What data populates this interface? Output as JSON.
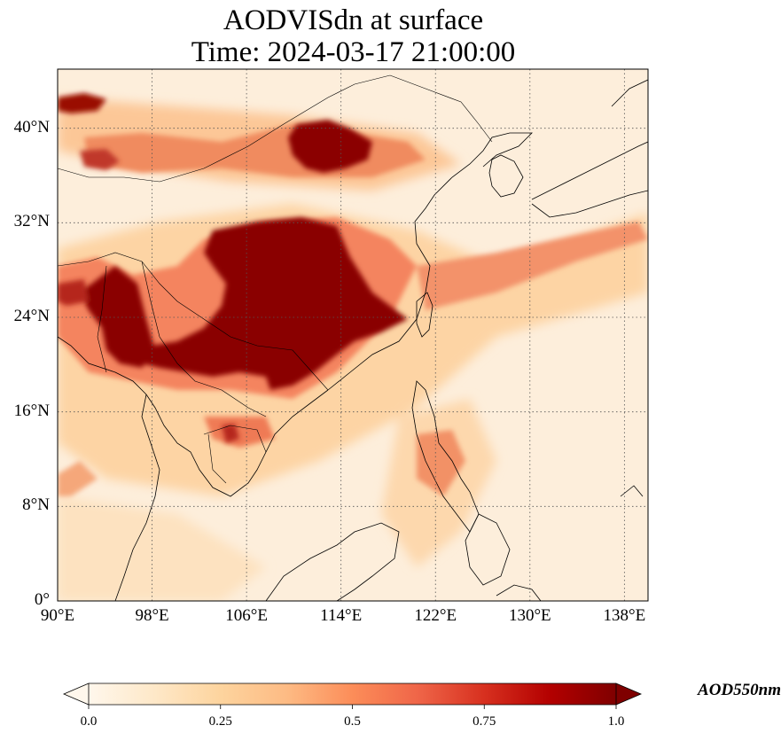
{
  "title": {
    "line1": "AODVISdn at surface",
    "line2": "Time: 2024-03-17 21:00:00"
  },
  "map": {
    "lon_range": [
      90,
      140
    ],
    "lat_range": [
      0,
      45
    ],
    "lat_ticks": [
      {
        "value": 40,
        "label": "40°N"
      },
      {
        "value": 32,
        "label": "32°N"
      },
      {
        "value": 24,
        "label": "24°N"
      },
      {
        "value": 16,
        "label": "16°N"
      },
      {
        "value": 8,
        "label": "8°N"
      },
      {
        "value": 0,
        "label": "0°"
      }
    ],
    "lon_ticks": [
      {
        "value": 90,
        "label": "90°E"
      },
      {
        "value": 98,
        "label": "98°E"
      },
      {
        "value": 106,
        "label": "106°E"
      },
      {
        "value": 114,
        "label": "114°E"
      },
      {
        "value": 122,
        "label": "122°E"
      },
      {
        "value": 130,
        "label": "130°E"
      },
      {
        "value": 138,
        "label": "138°E"
      }
    ],
    "gridlines": "dotted",
    "colormap": "OrRd",
    "aerosol_plumes": [
      {
        "region": "south-china-indochina",
        "lon": [
          94,
          118
        ],
        "lat": [
          18,
          32
        ],
        "aod": 1.0
      },
      {
        "region": "north-china",
        "lon": [
          111,
          117
        ],
        "lat": [
          37,
          41
        ],
        "aod": 1.0
      },
      {
        "region": "northwest",
        "lon": [
          90,
          95
        ],
        "lat": [
          41,
          43
        ],
        "aod": 1.0
      },
      {
        "region": "east-outflow-band",
        "lon": [
          118,
          140
        ],
        "lat": [
          24,
          32
        ],
        "aod": 0.5
      }
    ]
  },
  "colorbar": {
    "min": 0.0,
    "max": 1.0,
    "extend": "both",
    "ticks": [
      "0.0",
      "0.25",
      "0.5",
      "0.75",
      "1.0"
    ],
    "label": "AOD550nm",
    "colors": [
      "#fff7ec",
      "#fee8c8",
      "#fdd49e",
      "#fdbb84",
      "#fc8d59",
      "#ef6548",
      "#d7301f",
      "#b30000",
      "#7f0000"
    ]
  }
}
